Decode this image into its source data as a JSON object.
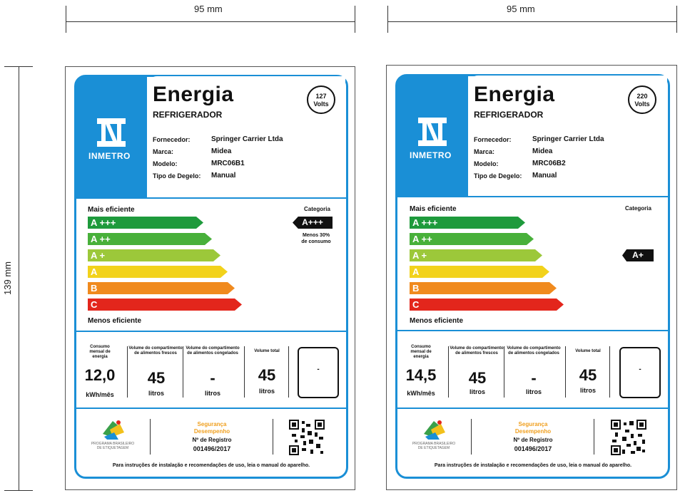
{
  "dimensions": {
    "width_label": "95 mm",
    "height_label": "139 mm"
  },
  "labels": [
    {
      "title": "Energia",
      "subtitle": "REFRIGERADOR",
      "volts_value": "127",
      "volts_unit": "Volts",
      "brand_logo": "INMETRO",
      "info": [
        {
          "key": "Fornecedor:",
          "value": "Springer Carrier Ltda"
        },
        {
          "key": "Marca:",
          "value": "Midea"
        },
        {
          "key": "Modelo:",
          "value": "MRC06B1"
        },
        {
          "key": "Tipo de Degelo:",
          "value": "Manual"
        }
      ],
      "more_efficient": "Mais eficiente",
      "less_efficient": "Menos eficiente",
      "category_label": "Categoria",
      "category_value": "A+++",
      "category_note_1": "Menos 30%",
      "category_note_2": "de consumo",
      "classes": [
        "A +++",
        "A ++",
        "A +",
        "A",
        "B",
        "C"
      ],
      "columns": [
        {
          "head": "Consumo mensal de energia",
          "value": "12,0",
          "unit": "kWh/mês"
        },
        {
          "head": "Volume do compartimento de alimentos frescos",
          "value": "45",
          "unit": "litros"
        },
        {
          "head": "Volume do compartimento de alimentos congelados",
          "value": "-",
          "unit": "litros"
        },
        {
          "head": "Volume total",
          "value": "45",
          "unit": "litros"
        }
      ],
      "box_value": "-",
      "program_text": "PROGRAMA BRASILEIRO DE ETIQUETAGEM",
      "seg_1": "Segurança",
      "seg_2": "Desempenho",
      "reg_label": "Nº de Registro",
      "reg_number": "001496/2017",
      "footer": "Para instruções de instalação e recomendações de uso, leia o manual do aparelho."
    },
    {
      "title": "Energia",
      "subtitle": "REFRIGERADOR",
      "volts_value": "220",
      "volts_unit": "Volts",
      "brand_logo": "INMETRO",
      "info": [
        {
          "key": "Fornecedor:",
          "value": "Springer Carrier Ltda"
        },
        {
          "key": "Marca:",
          "value": "Midea"
        },
        {
          "key": "Modelo:",
          "value": "MRC06B2"
        },
        {
          "key": "Tipo de Degelo:",
          "value": "Manual"
        }
      ],
      "more_efficient": "Mais eficiente",
      "less_efficient": "Menos eficiente",
      "category_label": "Categoria",
      "category_value": "A+",
      "classes": [
        "A +++",
        "A ++",
        "A +",
        "A",
        "B",
        "C"
      ],
      "columns": [
        {
          "head": "Consumo mensal de energia",
          "value": "14,5",
          "unit": "kWh/mês"
        },
        {
          "head": "Volume do compartimento de alimentos frescos",
          "value": "45",
          "unit": "litros"
        },
        {
          "head": "Volume do compartimento de alimentos congelados",
          "value": "-",
          "unit": "litros"
        },
        {
          "head": "Volume total",
          "value": "45",
          "unit": "litros"
        }
      ],
      "box_value": "-",
      "program_text": "PROGRAMA BRASILEIRO DE ETIQUETAGEM",
      "seg_1": "Segurança",
      "seg_2": "Desempenho",
      "reg_label": "Nº de Registro",
      "reg_number": "001496/2017",
      "footer": "Para instruções de instalação e recomendações de uso, leia o manual do aparelho."
    }
  ],
  "class_colors": [
    "#1e9a3c",
    "#48b03a",
    "#9cc83a",
    "#f2d21b",
    "#f08a1e",
    "#e3261c"
  ]
}
